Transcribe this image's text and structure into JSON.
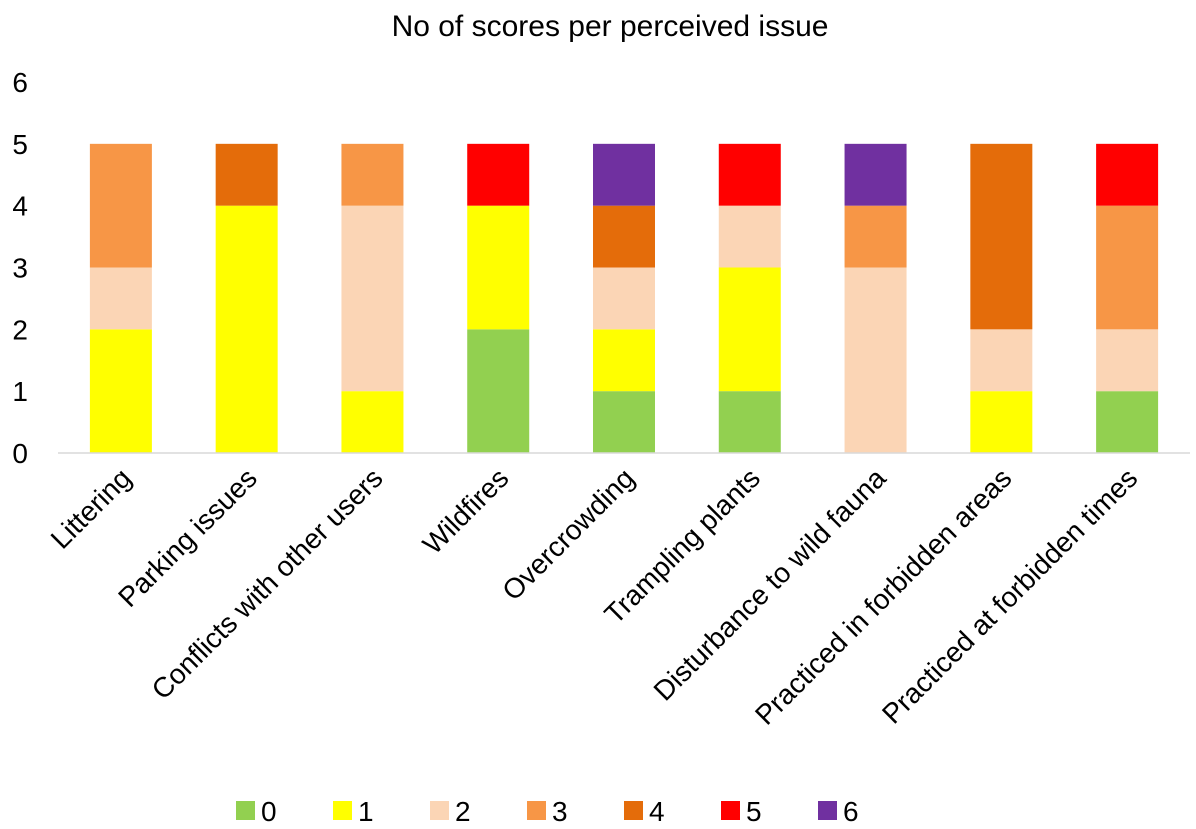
{
  "chart_data": {
    "type": "bar",
    "stacked": true,
    "title": "No of scores per perceived issue",
    "xlabel": "",
    "ylabel": "",
    "ylim": [
      0,
      6
    ],
    "yticks": [
      "0",
      "1",
      "2",
      "3",
      "4",
      "5",
      "6"
    ],
    "grid": false,
    "legend_position": "bottom",
    "categories": [
      "Littering",
      "Parking issues",
      "Conflicts with other users",
      "Wildfires",
      "Overcrowding",
      "Trampling plants",
      "Disturbance to wild fauna",
      "Practiced in forbidden areas",
      "Practiced at forbidden times"
    ],
    "series": [
      {
        "name": "0",
        "color": "#92D050",
        "values": [
          0,
          0,
          0,
          2,
          1,
          1,
          0,
          0,
          1
        ]
      },
      {
        "name": "1",
        "color": "#FFFF00",
        "values": [
          2,
          4,
          1,
          2,
          1,
          2,
          0,
          1,
          0
        ]
      },
      {
        "name": "2",
        "color": "#FBD5B5",
        "values": [
          1,
          0,
          3,
          0,
          1,
          1,
          3,
          1,
          1
        ]
      },
      {
        "name": "3",
        "color": "#F79646",
        "values": [
          2,
          0,
          1,
          0,
          0,
          0,
          1,
          0,
          2
        ]
      },
      {
        "name": "4",
        "color": "#E46C0A",
        "values": [
          0,
          1,
          0,
          0,
          1,
          0,
          0,
          3,
          0
        ]
      },
      {
        "name": "5",
        "color": "#FF0000",
        "values": [
          0,
          0,
          0,
          1,
          0,
          1,
          0,
          0,
          1
        ]
      },
      {
        "name": "6",
        "color": "#7030A0",
        "values": [
          0,
          0,
          0,
          0,
          1,
          0,
          1,
          0,
          0
        ]
      }
    ]
  }
}
